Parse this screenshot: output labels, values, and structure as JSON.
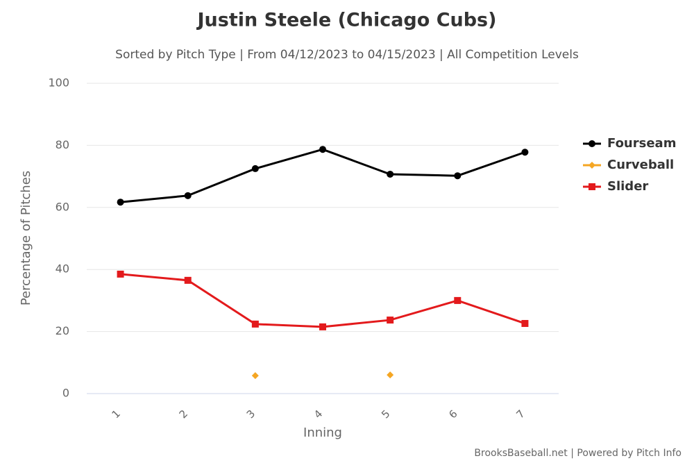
{
  "chart_data": {
    "type": "line",
    "title": "Justin Steele (Chicago Cubs)",
    "subtitle": "Sorted by Pitch Type | From 04/12/2023 to 04/15/2023 | All Competition Levels",
    "x_label": "Inning",
    "y_label": "Percentage of Pitches",
    "credit": "BrooksBaseball.net | Powered by Pitch Info",
    "categories": [
      "1",
      "2",
      "3",
      "4",
      "5",
      "6",
      "7"
    ],
    "series": [
      {
        "name": "Fourseam",
        "color": "#000000",
        "marker": "circle",
        "values": [
          61.7,
          63.8,
          72.5,
          78.7,
          70.7,
          70.2,
          77.8
        ]
      },
      {
        "name": "Curveball",
        "color": "#f5a623",
        "marker": "diamond",
        "values": [
          null,
          null,
          5.8,
          null,
          6.0,
          null,
          null
        ]
      },
      {
        "name": "Slider",
        "color": "#e31a1c",
        "marker": "square",
        "values": [
          38.5,
          36.5,
          22.4,
          21.5,
          23.7,
          30.0,
          22.6
        ]
      }
    ],
    "ylim": [
      0,
      100
    ],
    "yticks": [
      0,
      20,
      40,
      60,
      80,
      100
    ],
    "grid": true,
    "legend": "right"
  }
}
